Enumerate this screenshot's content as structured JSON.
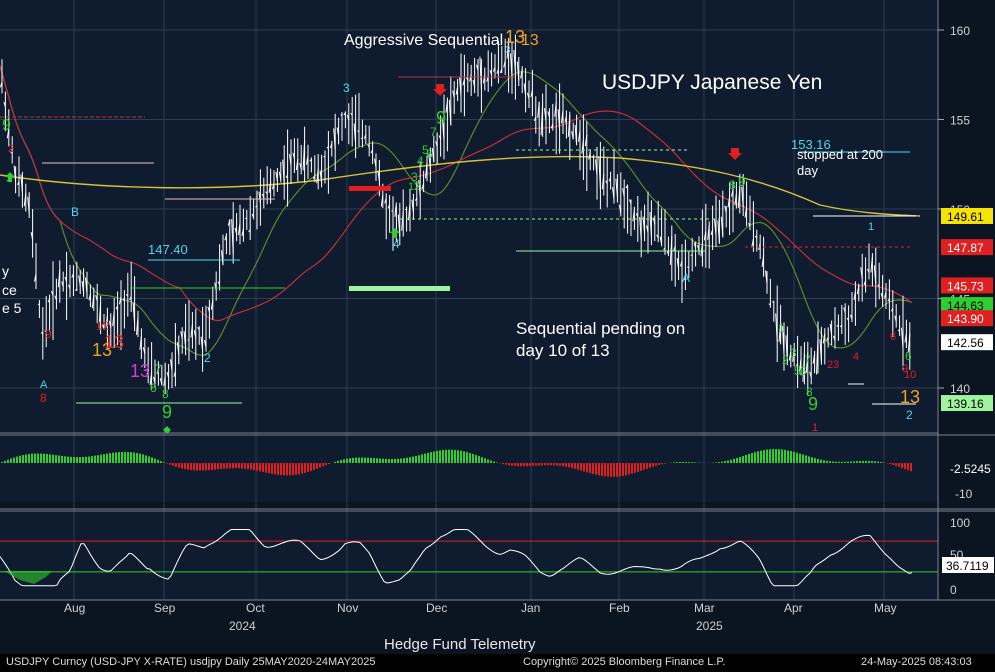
{
  "chart_data": {
    "type": "candlestick",
    "title": "USDJPY Japanese Yen",
    "watermark": "Hedge Fund Telemetry",
    "notes": {
      "aggressive": "Aggressive Sequential",
      "aggressive_num": "13",
      "pending": [
        "Sequential pending on",
        "day 10 of 13"
      ],
      "stopped": [
        "stopped at 200",
        "day"
      ],
      "level_15316": "153.16",
      "level_14740": "147.40",
      "left_edge": [
        "y",
        "ce",
        "e 5"
      ]
    },
    "price_axis": {
      "ticks": [
        160,
        155,
        150,
        145,
        140
      ],
      "range": [
        136.5,
        161.5
      ]
    },
    "osc_axis": {
      "ticks": [
        "-10"
      ],
      "last": "-2.5245"
    },
    "rsi_axis": {
      "ticks": [
        "100",
        "50",
        "0"
      ],
      "last": "36.7119",
      "upper": 70,
      "lower": 30
    },
    "price_tags": [
      {
        "value": "149.61",
        "bg": "#f5e400",
        "fg": "#000000"
      },
      {
        "value": "147.87",
        "bg": "#e02020",
        "fg": "#ffffff"
      },
      {
        "value": "145.73",
        "bg": "#e02020",
        "fg": "#ffffff"
      },
      {
        "value": "144.63",
        "bg": "#2fcf2f",
        "fg": "#000000"
      },
      {
        "value": "143.90",
        "bg": "#e02020",
        "fg": "#ffffff"
      },
      {
        "value": "142.56",
        "bg": "#ffffff",
        "fg": "#000000"
      },
      {
        "value": "139.16",
        "bg": "#9ef59e",
        "fg": "#000000"
      }
    ],
    "months": [
      "Aug",
      "Sep",
      "Oct",
      "Nov",
      "Dec",
      "Jan",
      "Feb",
      "Mar",
      "Apr",
      "May"
    ],
    "years": [
      "2024",
      "2025"
    ],
    "series": [
      {
        "name": "USDJPY",
        "color": "#ffffff"
      },
      {
        "name": "SMA short",
        "color": "#5a8a2a"
      },
      {
        "name": "SMA mid",
        "color": "#c0303a"
      },
      {
        "name": "SMA 200",
        "color": "#d4c23a"
      }
    ]
  },
  "footer": {
    "ticker": "USDJPY Curncy (USD-JPY X-RATE) usdjpy  Daily 25MAY2020-24MAY2025",
    "copyright": "Copyright© 2025 Bloomberg Finance L.P.",
    "timestamp": "24-May-2025 08:43:03"
  }
}
